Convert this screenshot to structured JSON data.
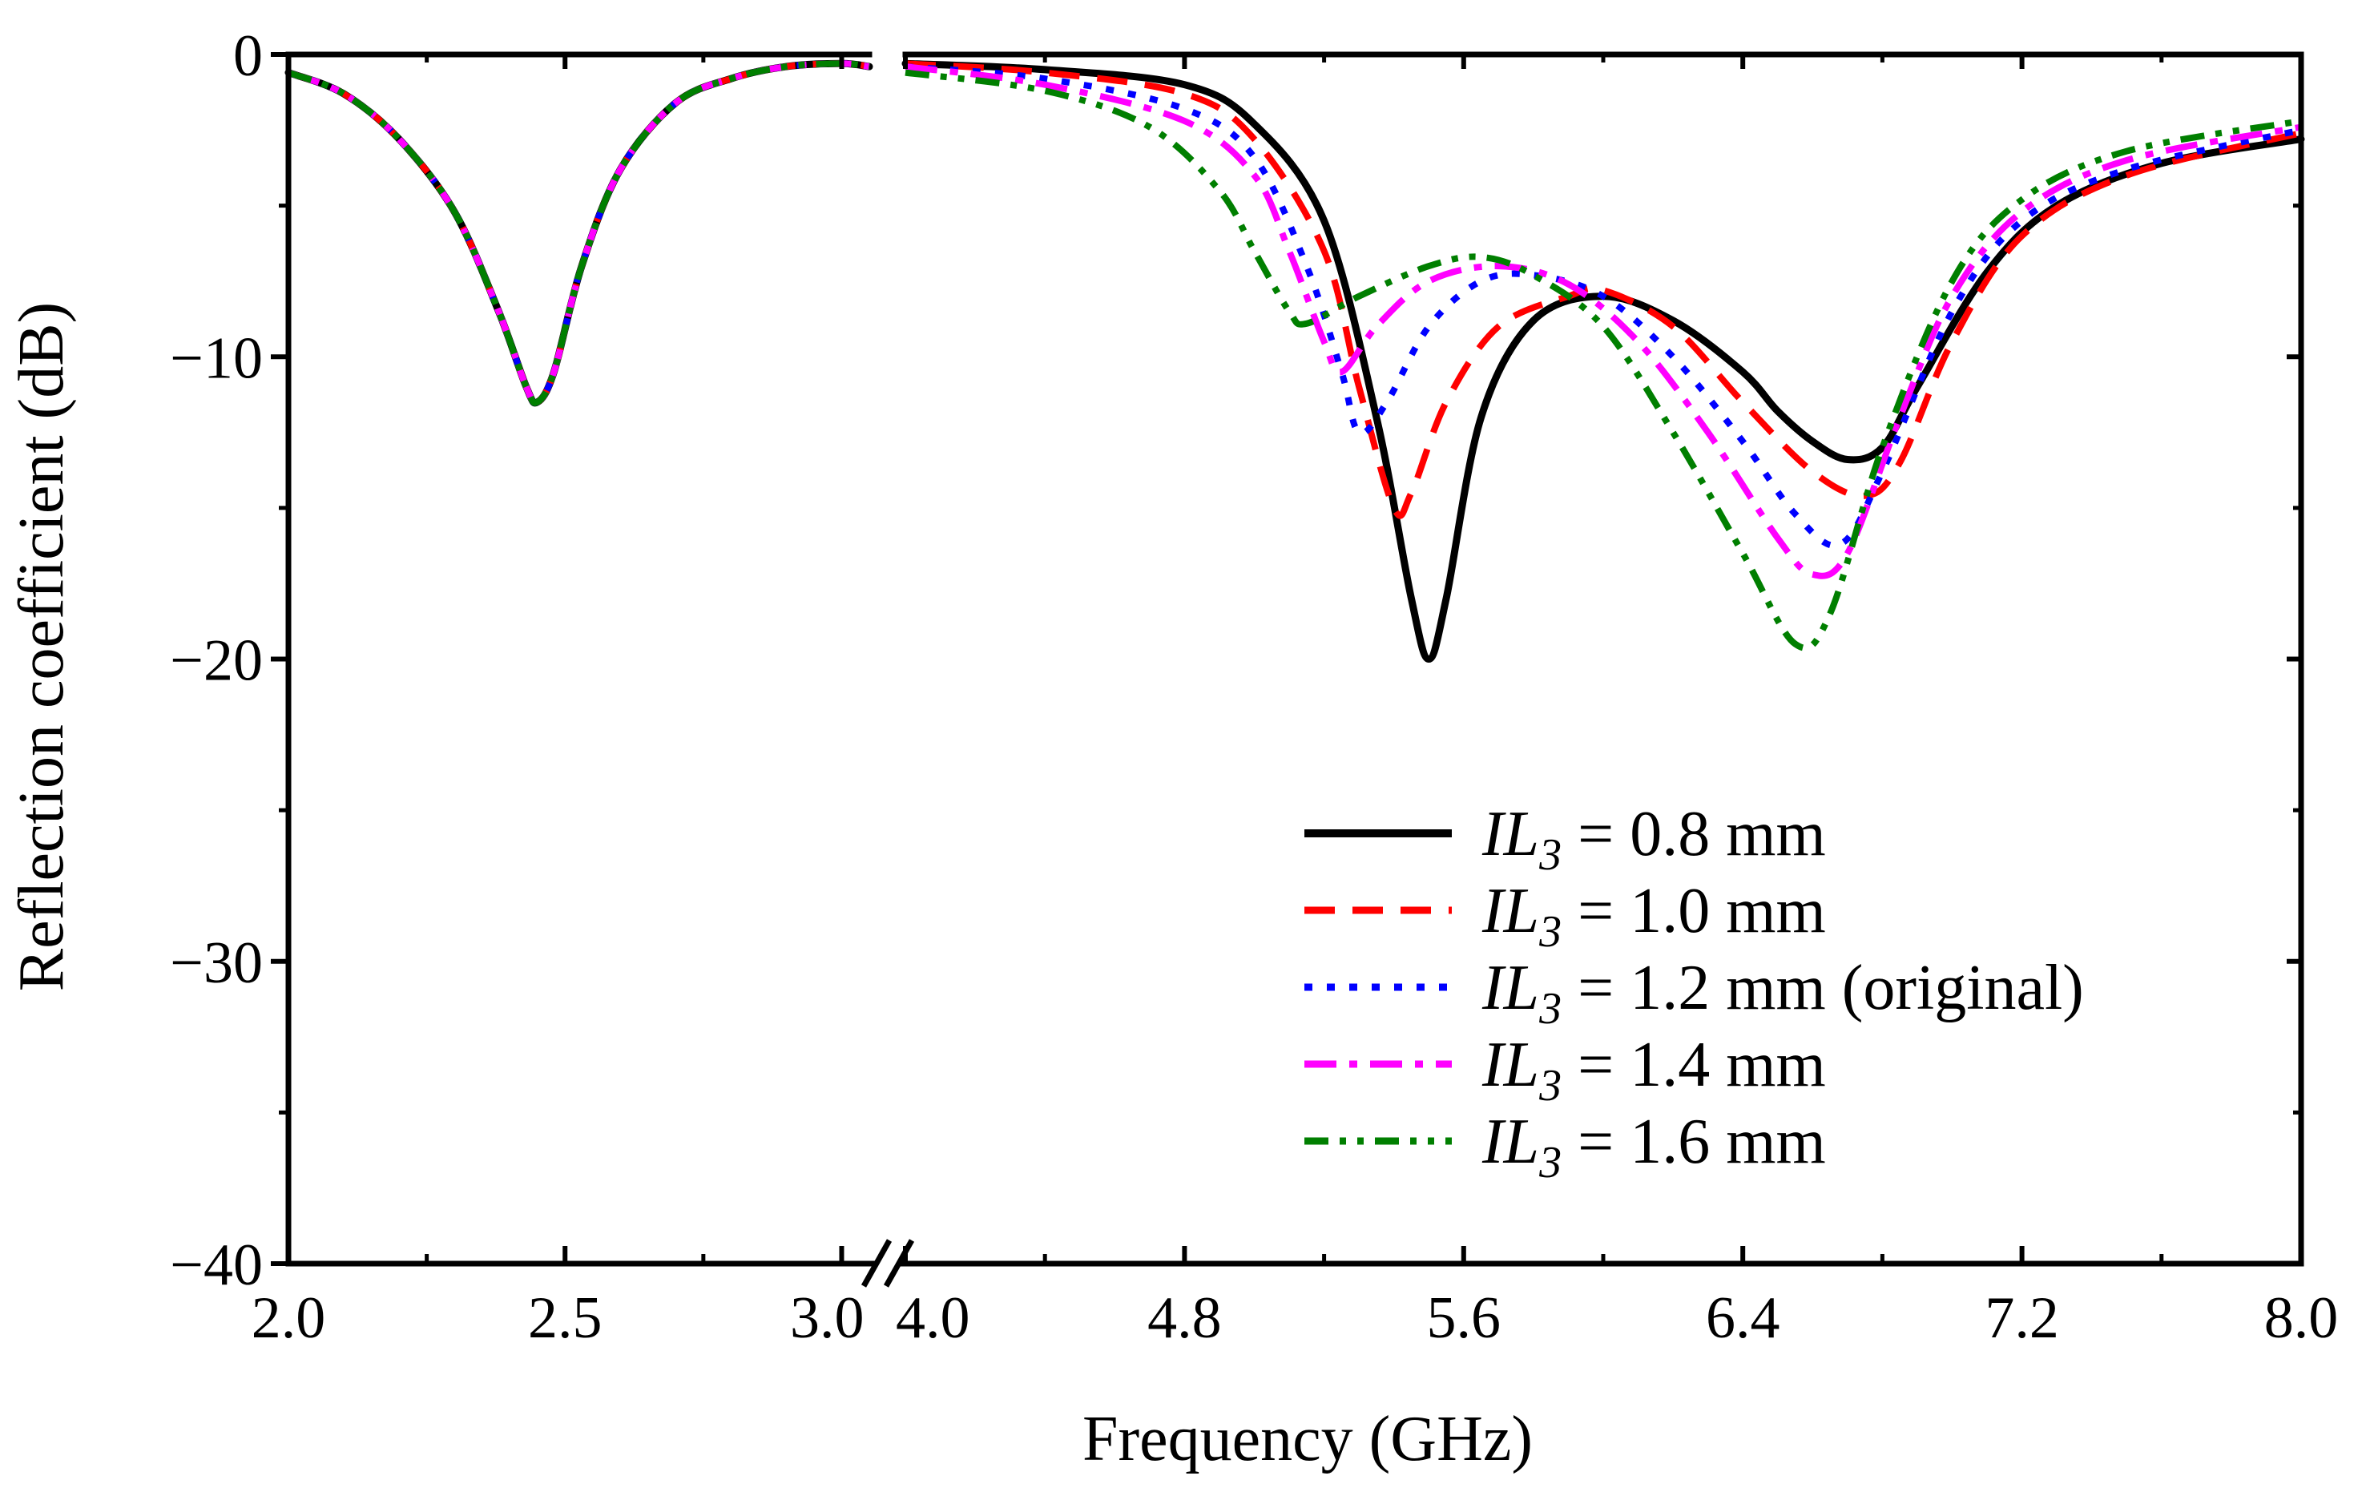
{
  "chart_data": {
    "type": "line",
    "title": "",
    "xlabel": "Frequency (GHz)",
    "ylabel": "Reflection coefficient (dB)",
    "ylim": [
      -40,
      0
    ],
    "y_ticks": [
      0,
      -10,
      -20,
      -30,
      -40
    ],
    "y_tick_labels": [
      "0",
      "−10",
      "−20",
      "−30",
      "−40"
    ],
    "x_axis_break": {
      "from": 3.05,
      "to": 4.0
    },
    "x_segments": [
      {
        "range": [
          2.0,
          3.05
        ],
        "ticks": [
          2.0,
          2.5,
          3.0
        ],
        "tick_labels": [
          "2.0",
          "2.5",
          "3.0"
        ]
      },
      {
        "range": [
          4.0,
          8.0
        ],
        "ticks": [
          4.0,
          4.8,
          5.6,
          6.4,
          7.2,
          8.0
        ],
        "tick_labels": [
          "4.0",
          "4.8",
          "5.6",
          "6.4",
          "7.2",
          "8.0"
        ]
      }
    ],
    "legend_position": "lower-right",
    "series": [
      {
        "name": "IL3 = 0.8 mm",
        "label_italic": "IL",
        "label_sub": "3",
        "label_rest": " = 0.8 mm",
        "color": "#000000",
        "dash": "solid",
        "low_band": [
          [
            2.0,
            -0.6
          ],
          [
            2.1,
            -1.3
          ],
          [
            2.2,
            -2.8
          ],
          [
            2.3,
            -5.2
          ],
          [
            2.38,
            -8.5
          ],
          [
            2.43,
            -11.0
          ],
          [
            2.45,
            -11.5
          ],
          [
            2.48,
            -10.5
          ],
          [
            2.53,
            -7.0
          ],
          [
            2.6,
            -3.8
          ],
          [
            2.7,
            -1.6
          ],
          [
            2.8,
            -0.8
          ],
          [
            2.9,
            -0.4
          ],
          [
            3.0,
            -0.3
          ],
          [
            3.05,
            -0.4
          ]
        ],
        "high_band": [
          [
            4.0,
            -0.3
          ],
          [
            4.4,
            -0.5
          ],
          [
            4.8,
            -1.0
          ],
          [
            5.0,
            -2.3
          ],
          [
            5.2,
            -5.5
          ],
          [
            5.35,
            -12.0
          ],
          [
            5.45,
            -18.0
          ],
          [
            5.5,
            -20.0
          ],
          [
            5.55,
            -18.0
          ],
          [
            5.65,
            -12.0
          ],
          [
            5.8,
            -8.8
          ],
          [
            6.0,
            -8.0
          ],
          [
            6.2,
            -8.8
          ],
          [
            6.4,
            -10.5
          ],
          [
            6.5,
            -11.8
          ],
          [
            6.6,
            -12.8
          ],
          [
            6.7,
            -13.4
          ],
          [
            6.8,
            -13.0
          ],
          [
            6.9,
            -11.0
          ],
          [
            7.1,
            -7.2
          ],
          [
            7.3,
            -5.0
          ],
          [
            7.6,
            -3.6
          ],
          [
            8.0,
            -2.8
          ]
        ]
      },
      {
        "name": "IL3 = 1.0 mm",
        "label_italic": "IL",
        "label_sub": "3",
        "label_rest": " = 1.0 mm",
        "color": "#ff0000",
        "dash": "dashed",
        "low_band": [
          [
            2.0,
            -0.6
          ],
          [
            2.1,
            -1.3
          ],
          [
            2.2,
            -2.8
          ],
          [
            2.3,
            -5.2
          ],
          [
            2.38,
            -8.5
          ],
          [
            2.43,
            -11.0
          ],
          [
            2.45,
            -11.5
          ],
          [
            2.48,
            -10.5
          ],
          [
            2.53,
            -7.0
          ],
          [
            2.6,
            -3.8
          ],
          [
            2.7,
            -1.6
          ],
          [
            2.8,
            -0.8
          ],
          [
            2.9,
            -0.4
          ],
          [
            3.0,
            -0.3
          ],
          [
            3.05,
            -0.4
          ]
        ],
        "high_band": [
          [
            4.0,
            -0.3
          ],
          [
            4.4,
            -0.6
          ],
          [
            4.8,
            -1.3
          ],
          [
            5.0,
            -2.8
          ],
          [
            5.2,
            -6.5
          ],
          [
            5.3,
            -11.0
          ],
          [
            5.4,
            -15.0
          ],
          [
            5.45,
            -14.5
          ],
          [
            5.55,
            -11.5
          ],
          [
            5.7,
            -9.0
          ],
          [
            5.9,
            -8.0
          ],
          [
            6.0,
            -7.8
          ],
          [
            6.2,
            -9.0
          ],
          [
            6.4,
            -11.5
          ],
          [
            6.6,
            -13.8
          ],
          [
            6.75,
            -14.6
          ],
          [
            6.85,
            -13.5
          ],
          [
            7.0,
            -9.5
          ],
          [
            7.2,
            -6.0
          ],
          [
            7.5,
            -4.0
          ],
          [
            8.0,
            -2.6
          ]
        ]
      },
      {
        "name": "IL3 = 1.2 mm (original)",
        "label_italic": "IL",
        "label_sub": "3",
        "label_rest": " = 1.2 mm (original)",
        "color": "#0000ff",
        "dash": "dotted",
        "low_band": [
          [
            2.0,
            -0.6
          ],
          [
            2.1,
            -1.3
          ],
          [
            2.2,
            -2.8
          ],
          [
            2.3,
            -5.2
          ],
          [
            2.38,
            -8.5
          ],
          [
            2.43,
            -11.0
          ],
          [
            2.45,
            -11.5
          ],
          [
            2.48,
            -10.5
          ],
          [
            2.53,
            -7.0
          ],
          [
            2.6,
            -3.8
          ],
          [
            2.7,
            -1.6
          ],
          [
            2.8,
            -0.8
          ],
          [
            2.9,
            -0.4
          ],
          [
            3.0,
            -0.3
          ],
          [
            3.05,
            -0.4
          ]
        ],
        "high_band": [
          [
            4.0,
            -0.4
          ],
          [
            4.4,
            -0.8
          ],
          [
            4.8,
            -1.8
          ],
          [
            5.0,
            -3.4
          ],
          [
            5.15,
            -7.0
          ],
          [
            5.25,
            -10.5
          ],
          [
            5.3,
            -12.5
          ],
          [
            5.38,
            -11.5
          ],
          [
            5.5,
            -9.0
          ],
          [
            5.65,
            -7.5
          ],
          [
            5.8,
            -7.3
          ],
          [
            6.0,
            -8.0
          ],
          [
            6.2,
            -10.0
          ],
          [
            6.4,
            -12.8
          ],
          [
            6.55,
            -15.2
          ],
          [
            6.68,
            -16.2
          ],
          [
            6.8,
            -13.8
          ],
          [
            7.0,
            -8.5
          ],
          [
            7.2,
            -5.5
          ],
          [
            7.5,
            -3.8
          ],
          [
            8.0,
            -2.5
          ]
        ]
      },
      {
        "name": "IL3 = 1.4 mm",
        "label_italic": "IL",
        "label_sub": "3",
        "label_rest": " = 1.4 mm",
        "color": "#ff00ff",
        "dash": "dash-dot",
        "low_band": [
          [
            2.0,
            -0.6
          ],
          [
            2.1,
            -1.3
          ],
          [
            2.2,
            -2.8
          ],
          [
            2.3,
            -5.2
          ],
          [
            2.38,
            -8.5
          ],
          [
            2.43,
            -11.0
          ],
          [
            2.45,
            -11.5
          ],
          [
            2.48,
            -10.5
          ],
          [
            2.53,
            -7.0
          ],
          [
            2.6,
            -3.8
          ],
          [
            2.7,
            -1.6
          ],
          [
            2.8,
            -0.8
          ],
          [
            2.9,
            -0.4
          ],
          [
            3.0,
            -0.3
          ],
          [
            3.05,
            -0.4
          ]
        ],
        "high_band": [
          [
            4.0,
            -0.4
          ],
          [
            4.4,
            -1.0
          ],
          [
            4.8,
            -2.2
          ],
          [
            5.0,
            -4.0
          ],
          [
            5.1,
            -6.5
          ],
          [
            5.2,
            -9.5
          ],
          [
            5.25,
            -10.5
          ],
          [
            5.35,
            -9.0
          ],
          [
            5.5,
            -7.5
          ],
          [
            5.7,
            -7.0
          ],
          [
            5.9,
            -7.6
          ],
          [
            6.1,
            -9.5
          ],
          [
            6.3,
            -12.5
          ],
          [
            6.5,
            -16.0
          ],
          [
            6.6,
            -17.2
          ],
          [
            6.7,
            -16.5
          ],
          [
            6.85,
            -12.0
          ],
          [
            7.0,
            -8.0
          ],
          [
            7.2,
            -5.2
          ],
          [
            7.5,
            -3.5
          ],
          [
            8.0,
            -2.4
          ]
        ]
      },
      {
        "name": "IL3 = 1.6 mm",
        "label_italic": "IL",
        "label_sub": "3",
        "label_rest": " = 1.6 mm",
        "color": "#007f00",
        "dash": "dash-dot-dot",
        "low_band": [
          [
            2.0,
            -0.6
          ],
          [
            2.1,
            -1.3
          ],
          [
            2.2,
            -2.8
          ],
          [
            2.3,
            -5.2
          ],
          [
            2.38,
            -8.5
          ],
          [
            2.43,
            -11.0
          ],
          [
            2.45,
            -11.5
          ],
          [
            2.48,
            -10.5
          ],
          [
            2.53,
            -7.0
          ],
          [
            2.6,
            -3.8
          ],
          [
            2.7,
            -1.6
          ],
          [
            2.8,
            -0.8
          ],
          [
            2.9,
            -0.4
          ],
          [
            3.0,
            -0.3
          ],
          [
            3.05,
            -0.4
          ]
        ],
        "high_band": [
          [
            4.0,
            -0.6
          ],
          [
            4.4,
            -1.2
          ],
          [
            4.7,
            -2.4
          ],
          [
            4.9,
            -4.5
          ],
          [
            5.0,
            -6.5
          ],
          [
            5.1,
            -8.5
          ],
          [
            5.15,
            -8.9
          ],
          [
            5.3,
            -8.0
          ],
          [
            5.5,
            -7.0
          ],
          [
            5.65,
            -6.7
          ],
          [
            5.8,
            -7.3
          ],
          [
            6.0,
            -9.0
          ],
          [
            6.2,
            -12.5
          ],
          [
            6.4,
            -16.5
          ],
          [
            6.55,
            -19.5
          ],
          [
            6.65,
            -18.5
          ],
          [
            6.8,
            -13.0
          ],
          [
            7.0,
            -7.5
          ],
          [
            7.2,
            -4.8
          ],
          [
            7.5,
            -3.2
          ],
          [
            8.0,
            -2.2
          ]
        ]
      }
    ]
  }
}
